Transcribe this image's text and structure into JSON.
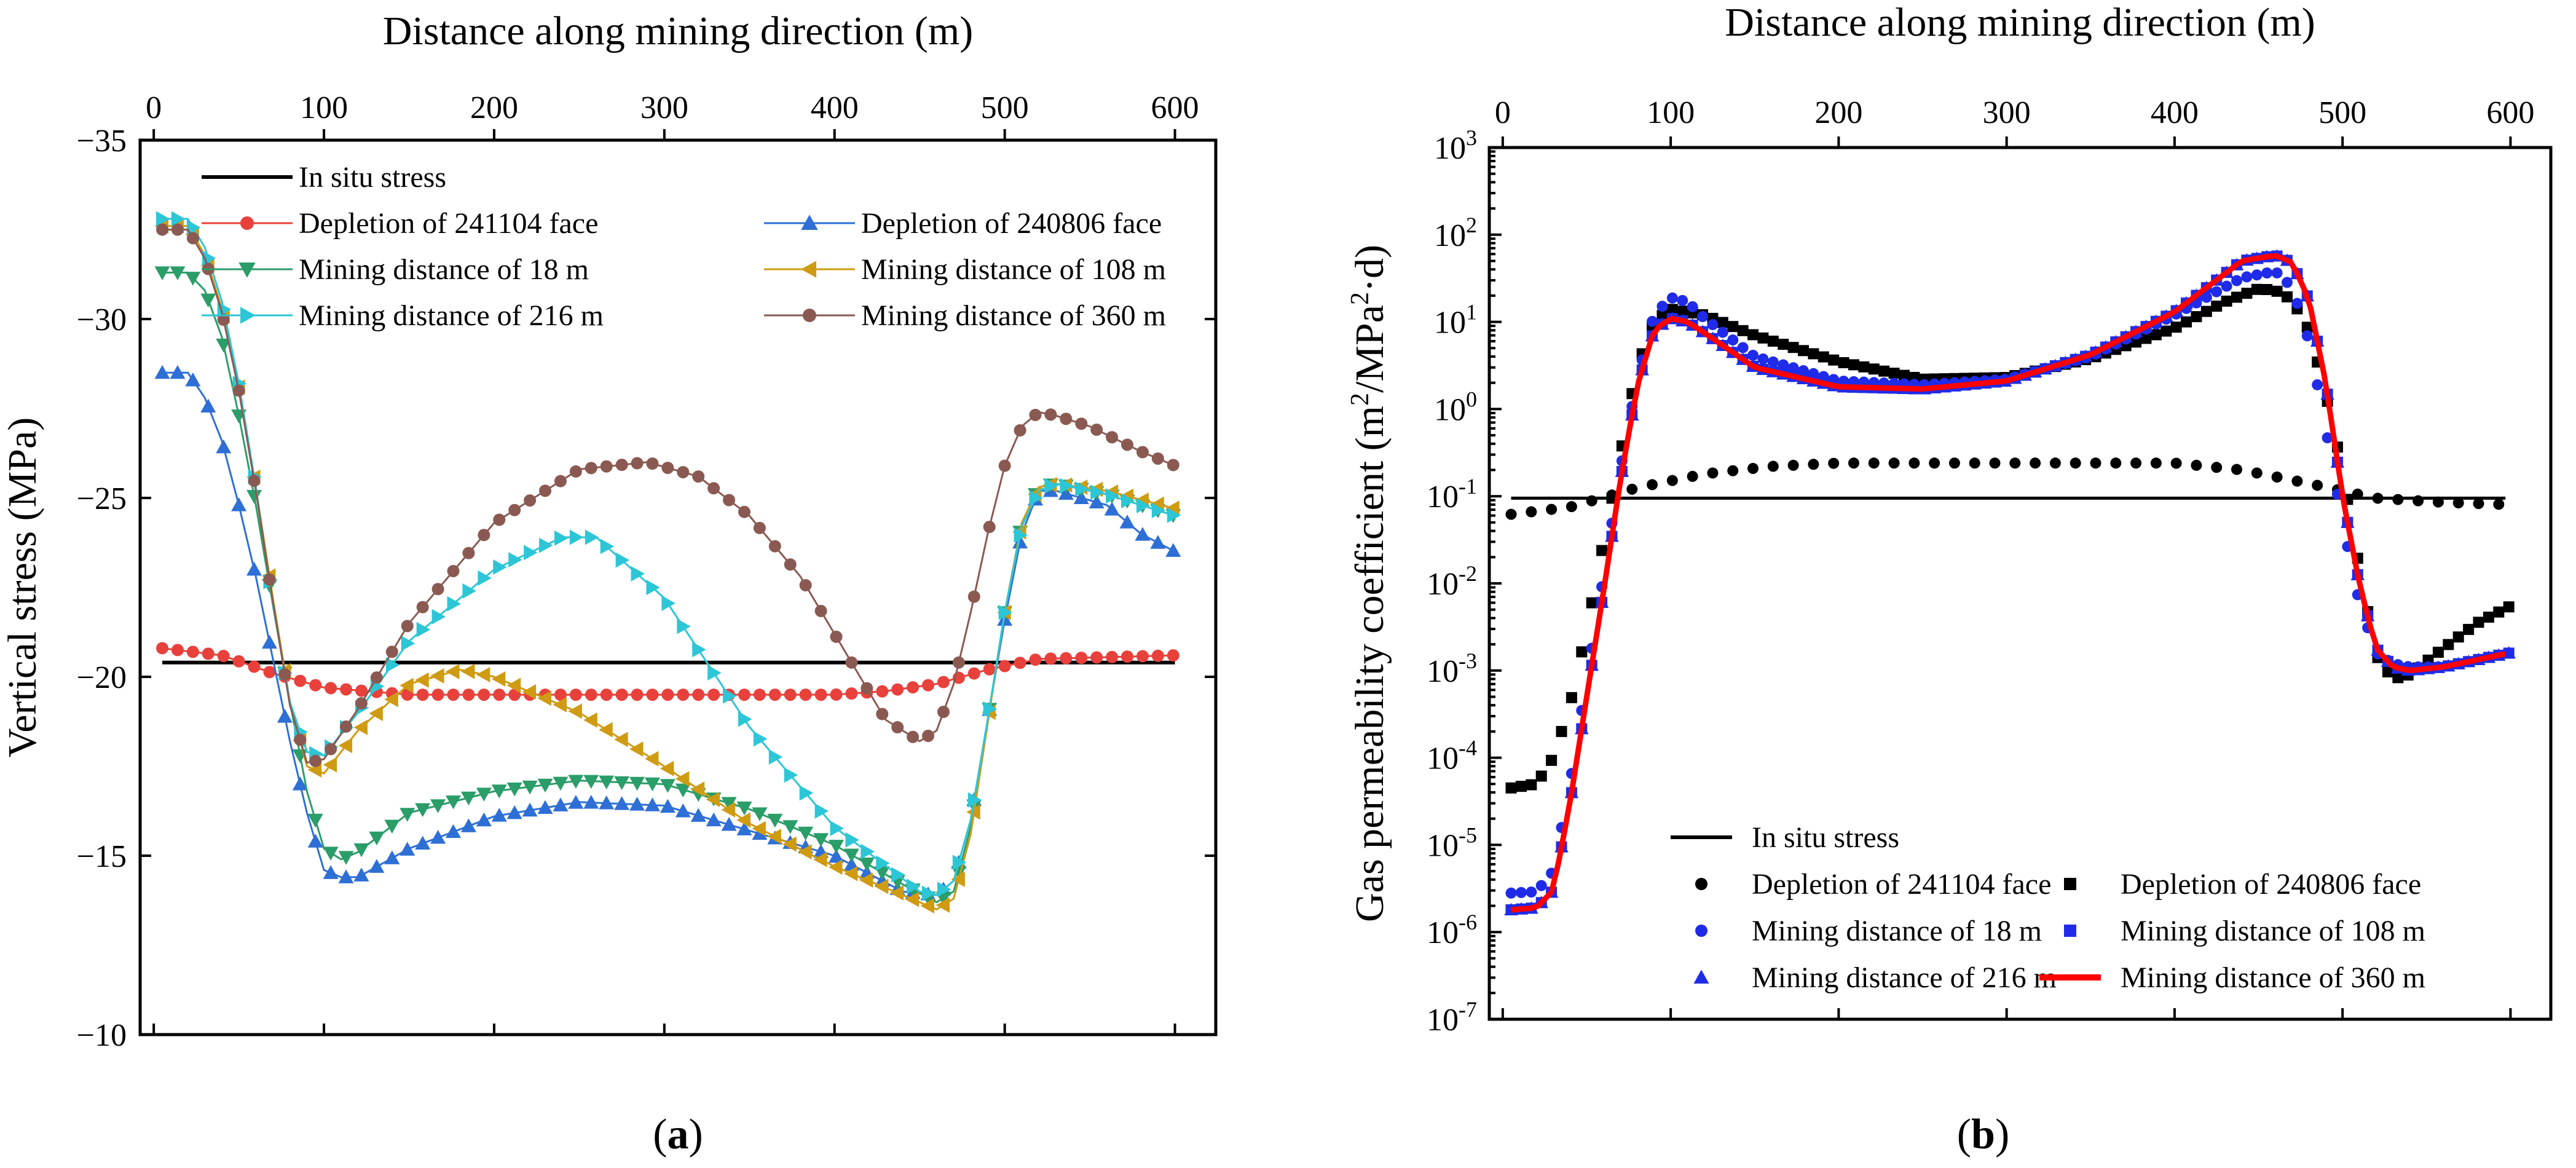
{
  "chart_data": [
    {
      "type": "line",
      "panel_label_prefix": "(",
      "panel_label": "a",
      "panel_label_suffix": ")",
      "xlabel": "Distance along mining direction (m)",
      "ylabel": "Vertical stress (MPa)",
      "xlim": [
        -8,
        624
      ],
      "ylim": [
        -35,
        -10
      ],
      "y_reversed": true,
      "x_axis_position": "top",
      "xticks": [
        0,
        100,
        200,
        300,
        400,
        500,
        600
      ],
      "yticks": [
        -35,
        -30,
        -25,
        -20,
        -15,
        -10
      ],
      "tick_label_prefix_negative": "−",
      "legend_position": "top",
      "grid": false,
      "series": [
        {
          "name": "In situ stress",
          "color": "#000000",
          "marker": "none",
          "x": [
            5,
            600
          ],
          "y": [
            -20.4,
            -20.4
          ]
        },
        {
          "name": "Depletion of 241104 face",
          "color": "#e8413c",
          "marker": "circle",
          "x": [
            5,
            40,
            70,
            100,
            150,
            200,
            300,
            400,
            430,
            460,
            490,
            520,
            600
          ],
          "y": [
            -20.8,
            -20.6,
            -20.1,
            -19.7,
            -19.5,
            -19.5,
            -19.5,
            -19.5,
            -19.6,
            -19.8,
            -20.2,
            -20.5,
            -20.6
          ]
        },
        {
          "name": "Depletion of 240806 face",
          "color": "#2e6fd6",
          "marker": "triangle-up",
          "x": [
            5,
            20,
            30,
            40,
            50,
            60,
            70,
            80,
            90,
            100,
            110,
            120,
            150,
            200,
            250,
            300,
            350,
            400,
            440,
            460,
            470,
            480,
            490,
            500,
            510,
            520,
            530,
            560,
            580,
            600
          ],
          "y": [
            -28.5,
            -28.5,
            -27.8,
            -26.6,
            -24.8,
            -22.8,
            -20.5,
            -18.2,
            -16.2,
            -14.6,
            -14.4,
            -14.4,
            -15.2,
            -16.1,
            -16.5,
            -16.4,
            -15.7,
            -15.0,
            -14.0,
            -13.9,
            -14.3,
            -16.0,
            -18.8,
            -21.6,
            -24.0,
            -25.2,
            -25.2,
            -24.8,
            -24.0,
            -23.5
          ]
        },
        {
          "name": "Mining distance of 18 m",
          "color": "#2a9d68",
          "marker": "triangle-down",
          "x": [
            5,
            20,
            30,
            40,
            50,
            60,
            70,
            80,
            90,
            100,
            110,
            120,
            150,
            200,
            250,
            300,
            350,
            400,
            440,
            460,
            470,
            480,
            490,
            500,
            510,
            520,
            530,
            560,
            600
          ],
          "y": [
            -31.3,
            -31.3,
            -30.8,
            -29.5,
            -27.3,
            -24.8,
            -22.0,
            -19.3,
            -16.8,
            -15.2,
            -14.9,
            -15.1,
            -16.2,
            -16.8,
            -17.1,
            -17.0,
            -16.3,
            -15.3,
            -14.2,
            -13.7,
            -14.0,
            -15.8,
            -18.8,
            -21.8,
            -24.3,
            -25.3,
            -25.4,
            -25.1,
            -24.5
          ]
        },
        {
          "name": "Mining distance of 108 m",
          "color": "#cf9b12",
          "marker": "triangle-left",
          "x": [
            5,
            20,
            30,
            40,
            50,
            60,
            70,
            80,
            90,
            100,
            120,
            150,
            180,
            200,
            250,
            300,
            350,
            400,
            450,
            460,
            470,
            480,
            490,
            500,
            510,
            520,
            530,
            560,
            600
          ],
          "y": [
            -32.6,
            -32.6,
            -31.8,
            -30.3,
            -28.1,
            -25.3,
            -22.2,
            -19.3,
            -17.5,
            -17.3,
            -18.5,
            -19.8,
            -20.2,
            -20.0,
            -19.0,
            -17.5,
            -15.9,
            -14.7,
            -13.7,
            -13.5,
            -13.8,
            -15.6,
            -18.7,
            -21.8,
            -24.3,
            -25.3,
            -25.4,
            -25.2,
            -24.7
          ]
        },
        {
          "name": "Mining distance of 216 m",
          "color": "#2dc6d6",
          "marker": "triangle-right",
          "x": [
            5,
            20,
            30,
            40,
            50,
            60,
            70,
            80,
            90,
            100,
            120,
            150,
            200,
            240,
            260,
            300,
            350,
            400,
            450,
            460,
            470,
            480,
            490,
            500,
            510,
            520,
            530,
            560,
            600
          ],
          "y": [
            -32.8,
            -32.8,
            -32.0,
            -30.5,
            -28.2,
            -25.3,
            -22.0,
            -19.3,
            -17.9,
            -17.8,
            -19.0,
            -21.0,
            -23.0,
            -23.9,
            -23.9,
            -22.2,
            -18.6,
            -15.8,
            -14.0,
            -13.9,
            -14.3,
            -16.0,
            -18.8,
            -21.8,
            -24.2,
            -25.2,
            -25.4,
            -25.1,
            -24.5
          ]
        },
        {
          "name": "Mining distance of 360 m",
          "color": "#8a5a52",
          "marker": "circle",
          "x": [
            5,
            20,
            30,
            40,
            50,
            60,
            70,
            80,
            90,
            100,
            120,
            150,
            200,
            250,
            290,
            320,
            350,
            380,
            400,
            420,
            430,
            450,
            460,
            470,
            480,
            490,
            500,
            510,
            520,
            530,
            550,
            580,
            600
          ],
          "y": [
            -32.5,
            -32.5,
            -31.7,
            -30.2,
            -28.0,
            -25.2,
            -22.1,
            -19.2,
            -17.6,
            -17.7,
            -19.1,
            -21.5,
            -24.3,
            -25.8,
            -26.0,
            -25.6,
            -24.5,
            -22.8,
            -21.2,
            -19.6,
            -18.8,
            -18.2,
            -18.5,
            -19.8,
            -21.8,
            -24.0,
            -25.9,
            -27.0,
            -27.4,
            -27.3,
            -27.0,
            -26.3,
            -25.9
          ]
        }
      ]
    },
    {
      "type": "line",
      "panel_label_prefix": "(",
      "panel_label": "b",
      "panel_label_suffix": ")",
      "xlabel": "Distance along mining direction (m)",
      "ylabel_parts": [
        "Gas permeability coefficient (m",
        "2",
        "/MPa",
        "2",
        "·d)"
      ],
      "xlim": [
        -8,
        624
      ],
      "y_scale": "log",
      "ylim": [
        1e-07,
        1000
      ],
      "x_axis_position": "top",
      "xticks": [
        0,
        100,
        200,
        300,
        400,
        500,
        600
      ],
      "ytick_exponents": [
        3,
        2,
        1,
        0,
        -1,
        -2,
        -3,
        -4,
        -5,
        -6,
        -7
      ],
      "ytick_base": "10",
      "legend_position": "bottom",
      "grid": false,
      "series": [
        {
          "name": "In situ stress",
          "color": "#000000",
          "marker": "none",
          "x": [
            5,
            600
          ],
          "y": [
            0.095,
            0.095
          ]
        },
        {
          "name": "Depletion of 241104 face",
          "color": "#000000",
          "marker": "circle",
          "x": [
            5,
            40,
            80,
            120,
            160,
            200,
            300,
            400,
            440,
            480,
            520,
            560,
            600
          ],
          "y": [
            0.062,
            0.075,
            0.125,
            0.18,
            0.22,
            0.24,
            0.24,
            0.24,
            0.2,
            0.14,
            0.095,
            0.085,
            0.08
          ]
        },
        {
          "name": "Depletion of 240806 face",
          "color": "#000000",
          "marker": "square",
          "x": [
            5,
            20,
            30,
            40,
            50,
            60,
            70,
            80,
            90,
            100,
            120,
            150,
            200,
            250,
            300,
            350,
            400,
            430,
            450,
            460,
            470,
            480,
            490,
            500,
            510,
            520,
            530,
            540,
            560,
            580,
            600
          ],
          "y": [
            4.5e-05,
            5e-05,
            0.0001,
            0.0004,
            0.003,
            0.03,
            0.3,
            3,
            10,
            14,
            12,
            7,
            3.5,
            2.2,
            2.3,
            3.8,
            8.5,
            17,
            24,
            23,
            18,
            8,
            1.5,
            0.2,
            0.015,
            0.0015,
            0.0008,
            0.0009,
            0.0018,
            0.0035,
            0.0055
          ]
        },
        {
          "name": "Mining distance of 18 m",
          "color": "#1f2be8",
          "marker": "circle",
          "x": [
            5,
            20,
            30,
            40,
            50,
            60,
            70,
            80,
            90,
            100,
            110,
            120,
            150,
            200,
            250,
            300,
            350,
            400,
            440,
            460,
            470,
            480,
            490,
            500,
            510,
            520,
            530,
            540,
            560,
            600
          ],
          "y": [
            2.8e-06,
            2.9e-06,
            5e-06,
            5e-05,
            0.0008,
            0.012,
            0.2,
            2.2,
            12,
            19,
            17,
            11,
            4,
            2.1,
            1.9,
            2.2,
            4,
            12,
            32,
            38,
            25,
            6,
            0.6,
            0.05,
            0.006,
            0.0016,
            0.0012,
            0.0011,
            0.0011,
            0.0016
          ]
        },
        {
          "name": "Mining distance of 108 m",
          "color": "#1f2be8",
          "marker": "square",
          "x": [
            5,
            20,
            30,
            40,
            50,
            60,
            70,
            80,
            90,
            100,
            110,
            120,
            150,
            200,
            250,
            300,
            350,
            400,
            440,
            460,
            470,
            480,
            490,
            500,
            510,
            520,
            530,
            540,
            560,
            600
          ],
          "y": [
            1.8e-06,
            1.9e-06,
            3e-06,
            3e-05,
            0.0005,
            0.008,
            0.15,
            1.8,
            8,
            11,
            10,
            7.5,
            3,
            1.8,
            1.7,
            2.1,
            4.2,
            13,
            50,
            58,
            48,
            18,
            2,
            0.1,
            0.01,
            0.0018,
            0.0011,
            0.001,
            0.0011,
            0.0016
          ]
        },
        {
          "name": "Mining distance of 216 m",
          "color": "#1f2be8",
          "marker": "triangle-up",
          "x": [
            5,
            20,
            30,
            40,
            50,
            60,
            70,
            80,
            90,
            100,
            110,
            120,
            150,
            200,
            250,
            300,
            350,
            400,
            440,
            460,
            470,
            480,
            490,
            500,
            510,
            520,
            530,
            540,
            560,
            600
          ],
          "y": [
            1.8e-06,
            1.9e-06,
            3e-06,
            3e-05,
            0.0005,
            0.008,
            0.15,
            1.8,
            8,
            11,
            10,
            7.5,
            3,
            1.8,
            1.7,
            2.1,
            4.2,
            13,
            50,
            58,
            48,
            18,
            2,
            0.1,
            0.01,
            0.0018,
            0.0011,
            0.001,
            0.0011,
            0.0016
          ]
        },
        {
          "name": "Mining distance of 360 m",
          "color": "#ff0000",
          "marker": "none",
          "x": [
            5,
            20,
            30,
            40,
            50,
            60,
            70,
            80,
            90,
            100,
            110,
            120,
            150,
            200,
            250,
            300,
            350,
            400,
            440,
            460,
            470,
            480,
            490,
            500,
            510,
            520,
            530,
            540,
            560,
            600
          ],
          "y": [
            1.8e-06,
            1.9e-06,
            3e-06,
            3e-05,
            0.0005,
            0.008,
            0.15,
            1.8,
            8,
            11,
            10,
            7.5,
            3,
            1.8,
            1.7,
            2.1,
            4.2,
            13,
            50,
            58,
            48,
            18,
            2,
            0.1,
            0.01,
            0.0018,
            0.0011,
            0.001,
            0.0011,
            0.0016
          ]
        }
      ]
    }
  ]
}
